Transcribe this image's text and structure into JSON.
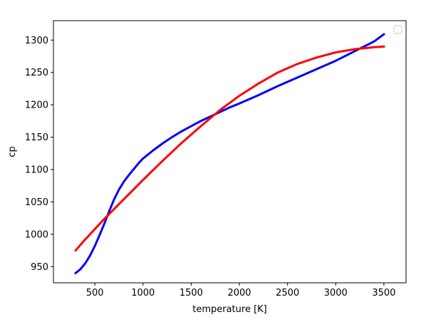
{
  "chart_data": {
    "type": "line",
    "title": "",
    "xlabel": "temperature [K]",
    "ylabel": "cp",
    "xlim": [
      70,
      3730
    ],
    "ylim": [
      925,
      1330
    ],
    "xticks": [
      500,
      1000,
      1500,
      2000,
      2500,
      3000,
      3500
    ],
    "yticks": [
      950,
      1000,
      1050,
      1100,
      1150,
      1200,
      1250,
      1300
    ],
    "grid": false,
    "legend": {
      "placement": "upper right",
      "entries": []
    },
    "series": [
      {
        "color": "#0000ff",
        "linewidth": 3,
        "x": [
          300,
          350,
          400,
          450,
          500,
          550,
          600,
          650,
          700,
          750,
          800,
          850,
          900,
          950,
          1000,
          1100,
          1200,
          1300,
          1400,
          1500,
          1600,
          1700,
          1800,
          1900,
          2000,
          2200,
          2400,
          2600,
          2800,
          3000,
          3200,
          3400,
          3500
        ],
        "y": [
          940,
          946,
          955,
          967,
          982,
          999,
          1017,
          1036,
          1054,
          1069,
          1081,
          1091,
          1100,
          1109,
          1117,
          1129,
          1140,
          1150,
          1159,
          1167,
          1175,
          1182,
          1189,
          1196,
          1202,
          1215,
          1229,
          1242,
          1255,
          1268,
          1283,
          1298,
          1309
        ]
      },
      {
        "color": "#ff0000",
        "linewidth": 3,
        "x": [
          300,
          400,
          500,
          600,
          700,
          800,
          900,
          1000,
          1200,
          1400,
          1600,
          1800,
          2000,
          2200,
          2400,
          2600,
          2800,
          3000,
          3200,
          3400,
          3500
        ],
        "y": [
          975,
          992,
          1008,
          1024,
          1039,
          1054,
          1069,
          1084,
          1113,
          1141,
          1167,
          1192,
          1214,
          1233,
          1250,
          1263,
          1273,
          1281,
          1286,
          1289,
          1290
        ]
      }
    ]
  }
}
